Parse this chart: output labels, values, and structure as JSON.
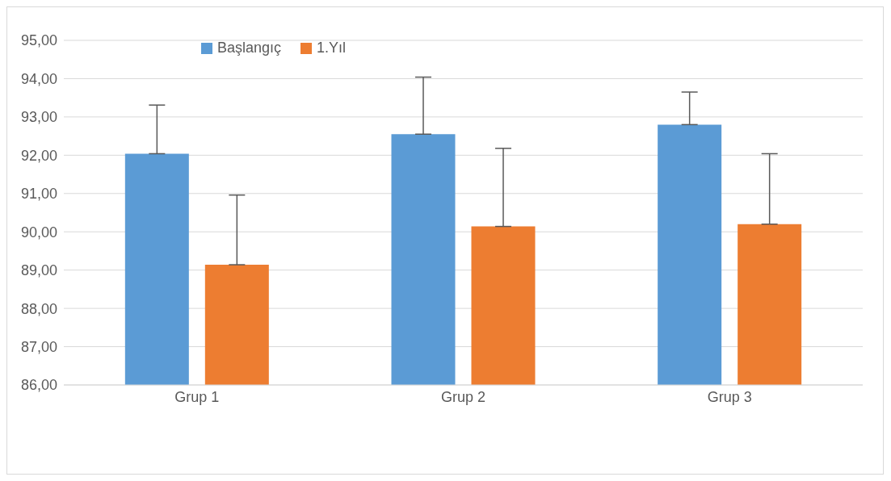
{
  "chart_data": {
    "type": "bar",
    "categories": [
      "Grup 1",
      "Grup 2",
      "Grup 3"
    ],
    "series": [
      {
        "name": "Başlangıç",
        "color": "#5b9bd5",
        "values": [
          92.04,
          92.55,
          92.8
        ],
        "errors": [
          [
            92.04,
            93.31
          ],
          [
            92.55,
            94.04
          ],
          [
            92.8,
            93.65
          ]
        ]
      },
      {
        "name": "1.Yıl",
        "color": "#ed7d31",
        "values": [
          89.14,
          90.14,
          90.2
        ],
        "errors": [
          [
            89.14,
            90.96
          ],
          [
            90.14,
            92.18
          ],
          [
            90.2,
            92.04
          ]
        ]
      }
    ],
    "ylim": [
      86,
      95
    ],
    "yticks": [
      {
        "value": 86,
        "label": "86,00"
      },
      {
        "value": 87,
        "label": "87,00"
      },
      {
        "value": 88,
        "label": "88,00"
      },
      {
        "value": 89,
        "label": "89,00"
      },
      {
        "value": 90,
        "label": "90,00"
      },
      {
        "value": 91,
        "label": "91,00"
      },
      {
        "value": 92,
        "label": "92,00"
      },
      {
        "value": 93,
        "label": "93,00"
      },
      {
        "value": 94,
        "label": "94,00"
      },
      {
        "value": 95,
        "label": "95,00"
      }
    ],
    "grid": "y",
    "legend": "top left"
  }
}
